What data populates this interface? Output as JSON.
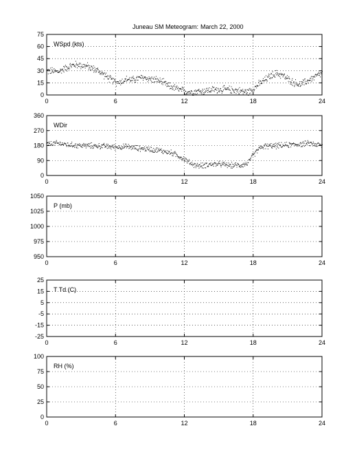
{
  "chart_data": {
    "type": "scatter",
    "title_station": "Juneau SM Meteogram:",
    "title_date": "March 22, 2000",
    "x_ticks": [
      "0",
      "6",
      "12",
      "18",
      "24"
    ],
    "xlim": [
      0,
      24
    ],
    "panels": [
      {
        "key": "wspd",
        "label": "WSpd (kts)",
        "ylim": [
          0,
          75
        ],
        "yticks": [
          "0",
          "15",
          "30",
          "45",
          "60",
          "75"
        ],
        "trend": [
          [
            0,
            30
          ],
          [
            0.5,
            30
          ],
          [
            1,
            29
          ],
          [
            1.5,
            33
          ],
          [
            2,
            36
          ],
          [
            2.5,
            38
          ],
          [
            3,
            37
          ],
          [
            3.5,
            36
          ],
          [
            4,
            33
          ],
          [
            4.5,
            30
          ],
          [
            5,
            25
          ],
          [
            5.5,
            20
          ],
          [
            6,
            16
          ],
          [
            6.5,
            17
          ],
          [
            7,
            20
          ],
          [
            7.5,
            19
          ],
          [
            8,
            21
          ],
          [
            8.5,
            22
          ],
          [
            9,
            20
          ],
          [
            9.5,
            19
          ],
          [
            10,
            17
          ],
          [
            10.5,
            12
          ],
          [
            11,
            10
          ],
          [
            11.5,
            7
          ],
          [
            12,
            5
          ],
          [
            12.5,
            4
          ],
          [
            13,
            5
          ],
          [
            13.5,
            5
          ],
          [
            14,
            6
          ],
          [
            14.5,
            7
          ],
          [
            15,
            7
          ],
          [
            15.5,
            7
          ],
          [
            16,
            7
          ],
          [
            16.5,
            6
          ],
          [
            17,
            5
          ],
          [
            17.5,
            4
          ],
          [
            18,
            8
          ],
          [
            18.5,
            14
          ],
          [
            19,
            19
          ],
          [
            19.5,
            24
          ],
          [
            20,
            27
          ],
          [
            20.5,
            25
          ],
          [
            21,
            20
          ],
          [
            21.5,
            16
          ],
          [
            22,
            13
          ],
          [
            22.5,
            16
          ],
          [
            23,
            20
          ],
          [
            23.5,
            24
          ],
          [
            24,
            27
          ]
        ],
        "spread": 4
      },
      {
        "key": "wdir",
        "label": "WDir",
        "ylim": [
          0,
          360
        ],
        "yticks": [
          "0",
          "90",
          "180",
          "270",
          "360"
        ],
        "trend": [
          [
            0,
            190
          ],
          [
            1,
            195
          ],
          [
            2,
            185
          ],
          [
            3,
            182
          ],
          [
            4,
            180
          ],
          [
            5,
            178
          ],
          [
            6,
            172
          ],
          [
            7,
            175
          ],
          [
            8,
            165
          ],
          [
            9,
            160
          ],
          [
            10,
            150
          ],
          [
            11,
            135
          ],
          [
            12,
            100
          ],
          [
            12.5,
            75
          ],
          [
            13,
            62
          ],
          [
            13.5,
            60
          ],
          [
            14,
            68
          ],
          [
            15,
            70
          ],
          [
            16,
            62
          ],
          [
            17,
            65
          ],
          [
            17.5,
            75
          ],
          [
            18,
            125
          ],
          [
            18.5,
            165
          ],
          [
            19,
            178
          ],
          [
            20,
            180
          ],
          [
            21,
            185
          ],
          [
            22,
            190
          ],
          [
            23,
            195
          ],
          [
            24,
            180
          ]
        ],
        "spread": 15
      },
      {
        "key": "p",
        "label": "P (mb)",
        "ylim": [
          950,
          1050
        ],
        "yticks": [
          "950",
          "975",
          "1000",
          "1025",
          "1050"
        ],
        "trend": [],
        "spread": 0
      },
      {
        "key": "t",
        "label": "T Td (C)",
        "ylim": [
          -25,
          25
        ],
        "yticks": [
          "-25",
          "-15",
          "-5",
          "5",
          "15",
          "25"
        ],
        "trend": [],
        "spread": 0
      },
      {
        "key": "rh",
        "label": "RH (%)",
        "ylim": [
          0,
          100
        ],
        "yticks": [
          "0",
          "25",
          "50",
          "75",
          "100"
        ],
        "trend": [],
        "spread": 0
      }
    ]
  }
}
